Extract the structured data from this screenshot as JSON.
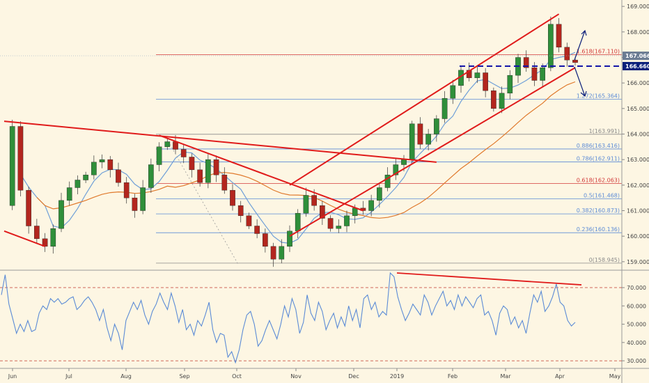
{
  "colors": {
    "background": "#fdf6e3",
    "candle_up": "#2f8f3a",
    "candle_down": "#b3261e",
    "ma_fast": "#6f9fd8",
    "ma_slow": "#e07a2d",
    "trendline": "#e01b1b",
    "fib_level": "#5b8bd6",
    "fib_level_red": "#d23a3a",
    "dashed_support": "#1414a8",
    "rsi_line": "#5b8bd6",
    "rsi_bound": "#c0392b",
    "axis_text": "#444444"
  },
  "chart_data": [
    {
      "type": "candlestick",
      "title": "",
      "price_axis": {
        "ylim": [
          158.75,
          169.25
        ],
        "ticks": [
          "169.000",
          "168.000",
          "167.000",
          "166.000",
          "165.000",
          "164.000",
          "163.000",
          "162.000",
          "161.000",
          "160.000",
          "159.000"
        ]
      },
      "time_axis": {
        "ticks": [
          "Jun",
          "Jul",
          "Aug",
          "Sep",
          "Oct",
          "Nov",
          "Dec",
          "2019",
          "Feb",
          "Mar",
          "Apr",
          "May"
        ]
      },
      "price_labels": [
        {
          "text": "167.066",
          "value": 167.066,
          "style": "gray"
        },
        {
          "text": "166.660",
          "value": 166.66,
          "style": "navy"
        }
      ],
      "fib_levels": [
        {
          "label": "1.618(167.110)",
          "value": 167.11,
          "color": "red"
        },
        {
          "label": "1.272(165.364)",
          "value": 165.364,
          "color": "blue"
        },
        {
          "label": "1(163.991)",
          "value": 163.991,
          "color": "gray"
        },
        {
          "label": "0.886(163.416)",
          "value": 163.416,
          "color": "blue"
        },
        {
          "label": "0.786(162.911)",
          "value": 162.911,
          "color": "blue"
        },
        {
          "label": "0.618(162.063)",
          "value": 162.063,
          "color": "red"
        },
        {
          "label": "0.5(161.468)",
          "value": 161.468,
          "color": "blue"
        },
        {
          "label": "0.382(160.873)",
          "value": 160.873,
          "color": "blue"
        },
        {
          "label": "0.236(160.136)",
          "value": 160.136,
          "color": "blue"
        },
        {
          "label": "0(158.945)",
          "value": 158.945,
          "color": "gray"
        }
      ],
      "candles_close_path": [
        161.2,
        164.3,
        161.8,
        160.4,
        159.9,
        159.6,
        160.3,
        161.4,
        161.9,
        162.2,
        162.4,
        162.9,
        163.0,
        162.6,
        162.1,
        161.5,
        161.0,
        161.9,
        162.8,
        163.5,
        163.7,
        163.4,
        163.1,
        162.6,
        162.1,
        163.0,
        162.4,
        161.8,
        161.2,
        160.8,
        160.4,
        160.1,
        159.6,
        159.1,
        159.6,
        160.2,
        160.9,
        161.6,
        161.2,
        160.7,
        160.3,
        160.4,
        160.8,
        161.1,
        161.0,
        161.4,
        161.9,
        162.4,
        162.8,
        163.0,
        164.4,
        163.6,
        164.0,
        164.6,
        165.4,
        165.9,
        166.5,
        166.2,
        166.4,
        165.7,
        165.0,
        165.6,
        166.3,
        167.0,
        166.6,
        166.1,
        166.6,
        168.3,
        167.4,
        166.9,
        166.8
      ],
      "annotations": {
        "ascending_channel": "red trendlines",
        "descending_trendlines": "red trendlines",
        "dashed_support_level": 166.66
      }
    },
    {
      "type": "line",
      "title": "",
      "ylim": [
        27,
        78
      ],
      "ticks": [
        "70.000",
        "60.000",
        "50.000",
        "40.000",
        "30.000"
      ],
      "bounds": [
        70,
        30
      ],
      "series": [
        {
          "values": [
            66,
            77,
            61,
            53,
            45,
            50,
            46,
            52,
            46,
            47,
            56,
            60,
            58,
            64,
            62,
            64,
            61,
            62,
            64,
            65,
            58,
            60,
            63,
            65,
            62,
            58,
            52,
            58,
            48,
            41,
            50,
            45,
            36,
            52,
            57,
            62,
            58,
            63,
            55,
            50,
            57,
            61,
            67,
            62,
            58,
            67,
            60,
            51,
            58,
            47,
            50,
            44,
            52,
            49,
            55,
            62,
            47,
            40,
            45,
            44,
            32,
            35,
            29,
            36,
            47,
            55,
            57,
            50,
            38,
            41,
            47,
            52,
            47,
            42,
            50,
            60,
            54,
            64,
            58,
            45,
            51,
            66,
            56,
            52,
            62,
            57,
            47,
            52,
            56,
            48,
            54,
            49,
            60,
            52,
            58,
            48,
            64,
            66,
            58,
            62,
            54,
            57,
            55,
            78,
            76,
            65,
            58,
            52,
            56,
            61,
            58,
            55,
            66,
            62,
            55,
            60,
            64,
            68,
            60,
            63,
            58,
            66,
            60,
            65,
            62,
            59,
            64,
            66,
            55,
            57,
            52,
            44,
            56,
            60,
            58,
            50,
            54,
            48,
            52,
            45,
            56,
            66,
            62,
            68,
            57,
            60,
            65,
            72,
            62,
            60,
            52,
            49,
            51
          ]
        }
      ]
    }
  ]
}
